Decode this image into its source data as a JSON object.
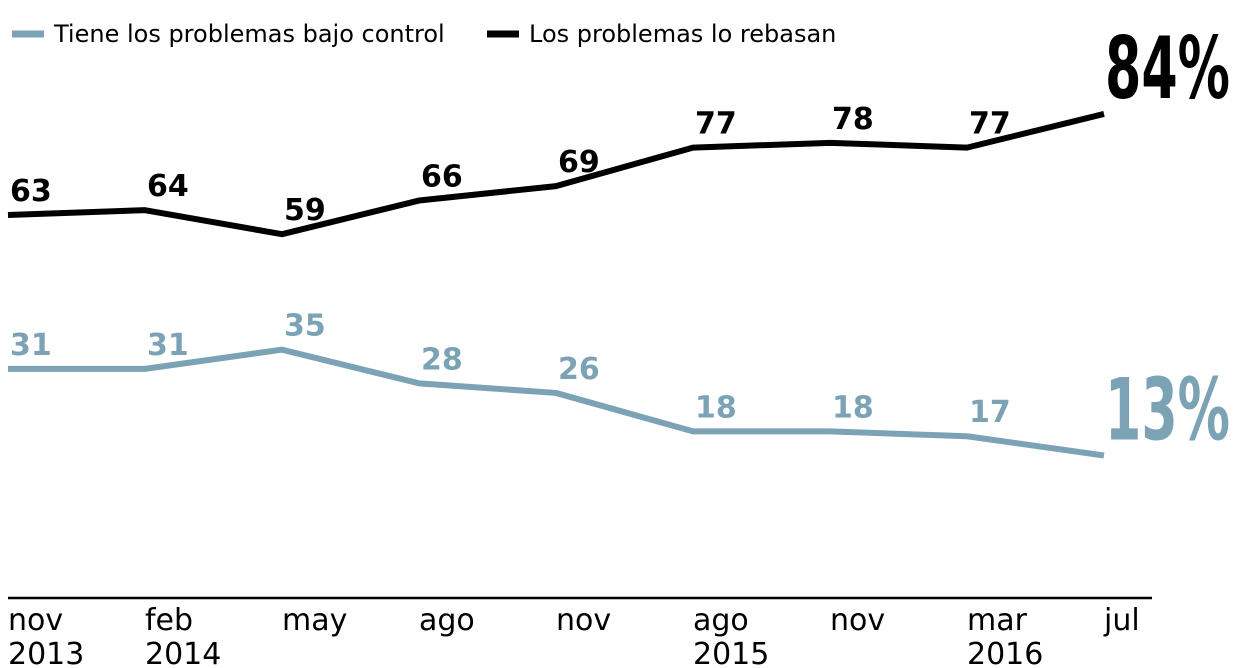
{
  "chart_data": {
    "type": "line",
    "categories": [
      "nov 2013",
      "feb 2014",
      "may",
      "ago",
      "nov",
      "ago 2015",
      "nov",
      "mar 2016",
      "jul"
    ],
    "series": [
      {
        "name": "Tiene los problemas bajo control",
        "color": "#7ba3b5",
        "values": [
          31,
          31,
          35,
          28,
          26,
          18,
          18,
          17,
          13
        ],
        "value_labels": [
          "31",
          "31",
          "35",
          "28",
          "26",
          "18",
          "18",
          "17",
          "13%"
        ]
      },
      {
        "name": "Los problemas lo rebasan",
        "color": "#000000",
        "values": [
          63,
          64,
          59,
          66,
          69,
          77,
          78,
          77,
          84
        ],
        "value_labels": [
          "63",
          "64",
          "59",
          "66",
          "69",
          "77",
          "78",
          "77",
          "84%"
        ]
      }
    ],
    "ylim": [
      0,
      100
    ]
  }
}
